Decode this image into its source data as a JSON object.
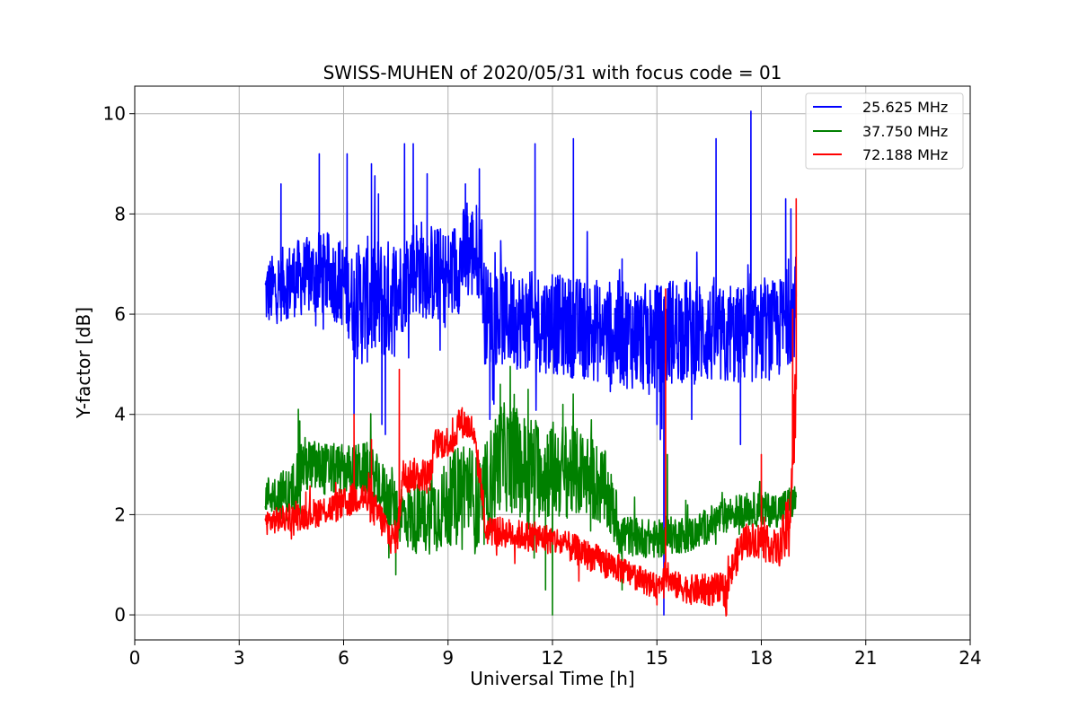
{
  "chart_data": {
    "type": "line",
    "title": "SWISS-MUHEN of 2020/05/31 with focus code = 01",
    "xlabel": "Universal Time [h]",
    "ylabel": "Y-factor [dB]",
    "xlim": [
      0,
      24
    ],
    "ylim": [
      -0.5,
      10.55
    ],
    "xticks": [
      0,
      3,
      6,
      9,
      12,
      15,
      18,
      21,
      24
    ],
    "yticks": [
      0,
      2,
      4,
      6,
      8,
      10
    ],
    "grid": true,
    "legend_position": "top-right",
    "series": [
      {
        "name": "25.625 MHz",
        "color": "#0000ff",
        "baseline": [
          [
            3.75,
            6.4
          ],
          [
            4.5,
            6.7
          ],
          [
            5.5,
            6.8
          ],
          [
            6.0,
            6.6
          ],
          [
            6.3,
            6.2
          ],
          [
            6.8,
            6.3
          ],
          [
            7.3,
            6.3
          ],
          [
            7.6,
            6.5
          ],
          [
            8.0,
            7.0
          ],
          [
            8.6,
            6.8
          ],
          [
            9.0,
            6.7
          ],
          [
            9.5,
            7.2
          ],
          [
            9.95,
            7.3
          ],
          [
            10.05,
            6.0
          ],
          [
            11.0,
            5.9
          ],
          [
            12.0,
            5.8
          ],
          [
            13.0,
            5.7
          ],
          [
            14.0,
            5.6
          ],
          [
            15.0,
            5.5
          ],
          [
            15.5,
            5.7
          ],
          [
            16.5,
            5.6
          ],
          [
            17.0,
            5.5
          ],
          [
            17.5,
            5.6
          ],
          [
            18.5,
            5.7
          ],
          [
            19.0,
            6.2
          ]
        ],
        "spread": [
          [
            3.75,
            0.7
          ],
          [
            6.2,
            0.9
          ],
          [
            6.5,
            1.3
          ],
          [
            7.5,
            1.2
          ],
          [
            7.6,
            1.0
          ],
          [
            10.0,
            1.0
          ],
          [
            12.0,
            1.0
          ],
          [
            15.0,
            1.1
          ],
          [
            17.0,
            1.0
          ],
          [
            19.0,
            1.0
          ]
        ],
        "spikes": [
          [
            4.2,
            8.6
          ],
          [
            5.3,
            9.2
          ],
          [
            6.1,
            9.2
          ],
          [
            6.8,
            9.0
          ],
          [
            7.0,
            8.4
          ],
          [
            7.75,
            9.4
          ],
          [
            8.0,
            9.4
          ],
          [
            8.4,
            8.8
          ],
          [
            9.5,
            8.6
          ],
          [
            9.9,
            8.9
          ],
          [
            11.5,
            9.4
          ],
          [
            12.6,
            9.5
          ],
          [
            14.0,
            7.1
          ],
          [
            16.7,
            9.5
          ],
          [
            17.7,
            10.05
          ],
          [
            18.7,
            8.3
          ],
          [
            18.85,
            8.1
          ]
        ],
        "dips": [
          [
            6.3,
            4.0
          ],
          [
            7.1,
            3.8
          ],
          [
            7.2,
            3.6
          ],
          [
            10.2,
            3.9
          ],
          [
            15.1,
            3.5
          ],
          [
            15.2,
            0.0
          ],
          [
            16.0,
            3.9
          ],
          [
            17.4,
            3.4
          ]
        ]
      },
      {
        "name": "37.750 MHz",
        "color": "#008000",
        "baseline": [
          [
            3.75,
            2.4
          ],
          [
            4.5,
            2.4
          ],
          [
            4.8,
            3.0
          ],
          [
            5.5,
            2.9
          ],
          [
            6.0,
            2.9
          ],
          [
            6.7,
            2.9
          ],
          [
            7.0,
            2.6
          ],
          [
            7.5,
            2.1
          ],
          [
            8.0,
            1.9
          ],
          [
            8.5,
            2.0
          ],
          [
            9.0,
            2.2
          ],
          [
            9.5,
            2.7
          ],
          [
            9.9,
            2.0
          ],
          [
            10.5,
            3.2
          ],
          [
            11.0,
            3.0
          ],
          [
            12.0,
            2.9
          ],
          [
            13.0,
            2.8
          ],
          [
            13.5,
            2.5
          ],
          [
            14.0,
            1.6
          ],
          [
            15.0,
            1.5
          ],
          [
            15.5,
            1.6
          ],
          [
            16.0,
            1.6
          ],
          [
            17.0,
            2.0
          ],
          [
            17.5,
            2.1
          ],
          [
            18.5,
            2.1
          ],
          [
            19.0,
            2.3
          ]
        ],
        "spread": [
          [
            3.75,
            0.35
          ],
          [
            4.6,
            0.6
          ],
          [
            6.0,
            0.5
          ],
          [
            7.5,
            0.6
          ],
          [
            10.2,
            1.1
          ],
          [
            12.0,
            1.0
          ],
          [
            13.5,
            0.8
          ],
          [
            14.2,
            0.4
          ],
          [
            17.0,
            0.35
          ],
          [
            19.0,
            0.35
          ]
        ],
        "spikes": [
          [
            4.7,
            4.1
          ],
          [
            10.5,
            4.6
          ],
          [
            10.9,
            4.4
          ],
          [
            11.3,
            4.5
          ],
          [
            12.3,
            4.2
          ],
          [
            15.3,
            3.2
          ]
        ],
        "dips": [
          [
            7.5,
            0.8
          ],
          [
            11.8,
            0.5
          ],
          [
            12.0,
            0.0
          ],
          [
            14.0,
            0.5
          ]
        ]
      },
      {
        "name": "72.188 MHz",
        "color": "#ff0000",
        "baseline": [
          [
            3.75,
            1.85
          ],
          [
            5.0,
            2.0
          ],
          [
            6.0,
            2.2
          ],
          [
            6.5,
            2.4
          ],
          [
            7.0,
            2.0
          ],
          [
            7.4,
            1.5
          ],
          [
            7.55,
            1.6
          ],
          [
            7.7,
            2.8
          ],
          [
            8.5,
            2.8
          ],
          [
            8.6,
            3.4
          ],
          [
            9.2,
            3.5
          ],
          [
            9.3,
            3.9
          ],
          [
            9.7,
            3.7
          ],
          [
            10.0,
            2.4
          ],
          [
            10.05,
            1.7
          ],
          [
            11.0,
            1.6
          ],
          [
            12.0,
            1.5
          ],
          [
            13.0,
            1.2
          ],
          [
            14.0,
            0.9
          ],
          [
            15.0,
            0.55
          ],
          [
            15.2,
            0.8
          ],
          [
            15.5,
            0.6
          ],
          [
            16.0,
            0.5
          ],
          [
            17.0,
            0.5
          ],
          [
            17.2,
            1.0
          ],
          [
            17.5,
            1.5
          ],
          [
            18.0,
            1.5
          ],
          [
            18.5,
            1.3
          ],
          [
            18.8,
            1.8
          ],
          [
            19.0,
            4.5
          ]
        ],
        "spread": [
          [
            3.75,
            0.25
          ],
          [
            7.0,
            0.35
          ],
          [
            10.0,
            0.3
          ],
          [
            13.0,
            0.3
          ],
          [
            15.0,
            0.25
          ],
          [
            17.0,
            0.35
          ],
          [
            18.5,
            0.35
          ],
          [
            19.0,
            1.0
          ]
        ],
        "spikes": [
          [
            6.3,
            4.0
          ],
          [
            6.8,
            3.5
          ],
          [
            7.6,
            4.9
          ],
          [
            9.4,
            4.1
          ],
          [
            15.25,
            6.5
          ],
          [
            18.0,
            3.2
          ],
          [
            18.9,
            6.1
          ],
          [
            19.0,
            8.3
          ]
        ],
        "dips": [
          [
            15.0,
            0.2
          ],
          [
            17.0,
            0.0
          ]
        ]
      }
    ]
  }
}
